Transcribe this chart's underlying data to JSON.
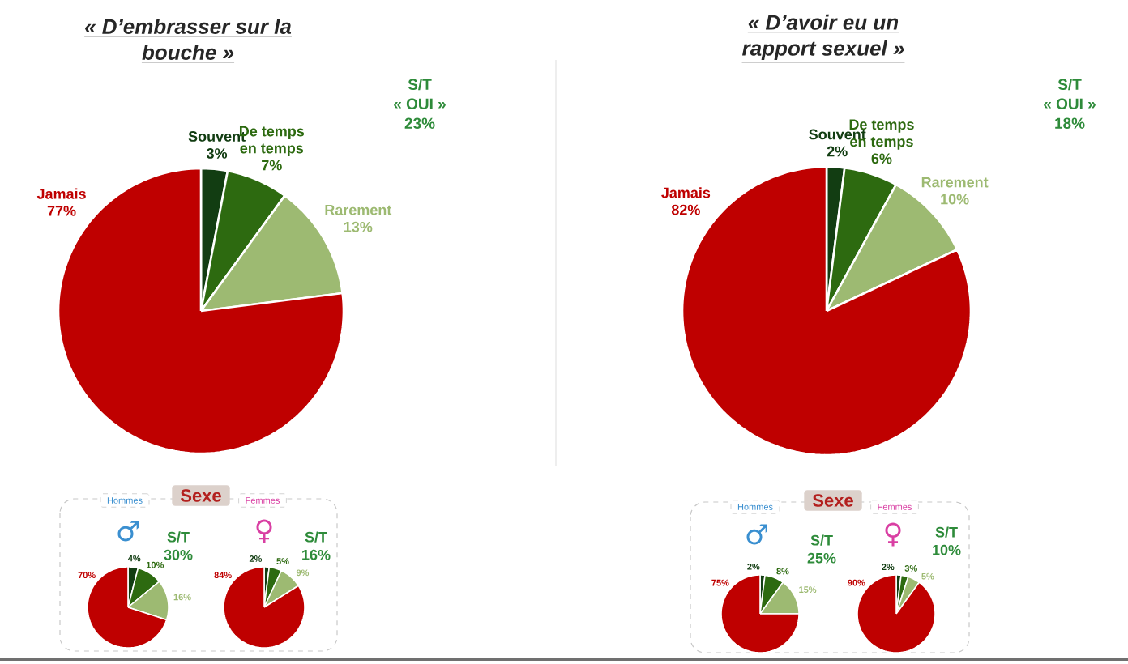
{
  "chart_data": [
    {
      "type": "pie",
      "title": "« D’embrasser sur la bouche »",
      "categories": [
        "Souvent",
        "De temps en temps",
        "Rarement",
        "Jamais"
      ],
      "values": [
        3,
        7,
        13,
        77
      ],
      "value_labels": [
        "3%",
        "7%",
        "13%",
        "77%"
      ],
      "colors": [
        "#123d12",
        "#2d6a10",
        "#9dba72",
        "#bf0000"
      ],
      "annotations": [
        "S/T",
        "« OUI »",
        "23%"
      ]
    },
    {
      "type": "pie",
      "title": "« D’avoir eu un rapport sexuel »",
      "categories": [
        "Souvent",
        "De temps en temps",
        "Rarement",
        "Jamais"
      ],
      "values": [
        2,
        6,
        10,
        82
      ],
      "value_labels": [
        "2%",
        "6%",
        "10%",
        "82%"
      ],
      "colors": [
        "#123d12",
        "#2d6a10",
        "#9dba72",
        "#bf0000"
      ],
      "annotations": [
        "S/T",
        "« OUI »",
        "18%"
      ]
    },
    {
      "type": "other",
      "title": "Sexe"
    },
    {
      "type": "pie",
      "title": "Hommes",
      "subtitle": "♂",
      "categories": [
        null,
        null,
        null,
        null
      ],
      "values": [
        4,
        10,
        16,
        70
      ],
      "value_labels": [
        "4%",
        "10%",
        "16%",
        "70%"
      ],
      "colors": [
        "#123d12",
        "#2d6a10",
        "#9dba72",
        "#bf0000"
      ],
      "annotations": [
        "S/T",
        "30%"
      ]
    },
    {
      "type": "pie",
      "title": "Femmes",
      "subtitle": "♀",
      "categories": [
        null,
        null,
        null,
        null
      ],
      "values": [
        2,
        5,
        9,
        84
      ],
      "value_labels": [
        "2%",
        "5%",
        "9%",
        "84%"
      ],
      "colors": [
        "#123d12",
        "#2d6a10",
        "#9dba72",
        "#bf0000"
      ],
      "annotations": [
        "S/T",
        "16%"
      ]
    },
    {
      "type": "other",
      "title": "Sexe"
    },
    {
      "type": "pie",
      "title": "Hommes",
      "subtitle": "♂",
      "categories": [
        null,
        null,
        null,
        null
      ],
      "values": [
        2,
        8,
        15,
        75
      ],
      "value_labels": [
        "2%",
        "8%",
        "15%",
        "75%"
      ],
      "colors": [
        "#123d12",
        "#2d6a10",
        "#9dba72",
        "#bf0000"
      ],
      "annotations": [
        "S/T",
        "25%"
      ]
    },
    {
      "type": "pie",
      "title": "Femmes",
      "subtitle": "♀",
      "categories": [
        null,
        null,
        null,
        null
      ],
      "values": [
        2,
        3,
        5,
        90
      ],
      "value_labels": [
        "2%",
        "3%",
        "5%",
        "90%"
      ],
      "colors": [
        "#123d12",
        "#2d6a10",
        "#9dba72",
        "#bf0000"
      ],
      "annotations": [
        "S/T",
        "10%"
      ]
    }
  ]
}
